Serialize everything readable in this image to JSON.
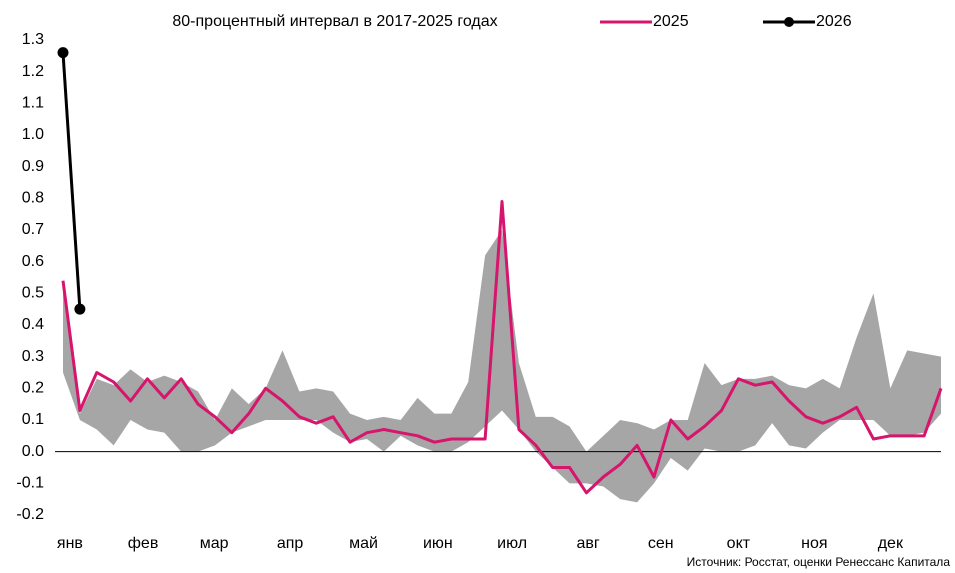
{
  "chart_data": {
    "type": "line",
    "x": [
      0,
      1,
      2,
      3,
      4,
      5,
      6,
      7,
      8,
      9,
      10,
      11,
      12,
      13,
      14,
      15,
      16,
      17,
      18,
      19,
      20,
      21,
      22,
      23,
      24,
      25,
      26,
      27,
      28,
      29,
      30,
      31,
      32,
      33,
      34,
      35,
      36,
      37,
      38,
      39,
      40,
      41,
      42,
      43,
      44,
      45,
      46,
      47,
      48,
      49,
      50,
      51,
      52
    ],
    "xlim": [
      0,
      52
    ],
    "xticks": [
      {
        "value": 0.41,
        "label": "янв"
      },
      {
        "value": 4.74,
        "label": "фев"
      },
      {
        "value": 8.95,
        "label": "мар"
      },
      {
        "value": 13.45,
        "label": "апр"
      },
      {
        "value": 17.8,
        "label": "май"
      },
      {
        "value": 22.2,
        "label": "июн"
      },
      {
        "value": 26.6,
        "label": "июл"
      },
      {
        "value": 31.1,
        "label": "авг"
      },
      {
        "value": 35.4,
        "label": "сен"
      },
      {
        "value": 40.0,
        "label": "окт"
      },
      {
        "value": 44.5,
        "label": "ноя"
      },
      {
        "value": 49.0,
        "label": "дек"
      }
    ],
    "ylim": [
      -0.2,
      1.3
    ],
    "yticks": [
      1.3,
      1.2,
      1.1,
      {
        "value": 1.0,
        "label": "1.0"
      },
      0.9,
      0.8,
      0.7,
      0.6,
      0.5,
      0.4,
      0.3,
      0.2,
      0.1,
      {
        "value": 0,
        "label": "0.0"
      },
      -0.1,
      -0.2
    ],
    "grid": false,
    "band": {
      "name": "80-процентный интервал в 2017-2025 годах",
      "color": "#a6a6a6",
      "upper": [
        0.52,
        0.12,
        0.23,
        0.21,
        0.26,
        0.22,
        0.24,
        0.22,
        0.19,
        0.1,
        0.2,
        0.15,
        0.2,
        0.32,
        0.19,
        0.2,
        0.19,
        0.12,
        0.1,
        0.11,
        0.1,
        0.17,
        0.12,
        0.12,
        0.22,
        0.62,
        0.7,
        0.28,
        0.11,
        0.11,
        0.08,
        0.0,
        0.05,
        0.1,
        0.09,
        0.07,
        0.1,
        0.1,
        0.28,
        0.21,
        0.23,
        0.23,
        0.24,
        0.21,
        0.2,
        0.23,
        0.2,
        0.36,
        0.5,
        0.2,
        0.32,
        0.31,
        0.3
      ],
      "lower": [
        0.25,
        0.1,
        0.07,
        0.02,
        0.1,
        0.07,
        0.06,
        0.0,
        0.0,
        0.02,
        0.06,
        0.08,
        0.1,
        0.1,
        0.1,
        0.1,
        0.06,
        0.03,
        0.04,
        0.0,
        0.05,
        0.02,
        0.0,
        0.0,
        0.03,
        0.08,
        0.13,
        0.07,
        0.0,
        -0.05,
        -0.1,
        -0.1,
        -0.11,
        -0.15,
        -0.16,
        -0.1,
        -0.02,
        -0.06,
        0.01,
        0.0,
        0.0,
        0.02,
        0.09,
        0.02,
        0.01,
        0.06,
        0.1,
        0.1,
        0.1,
        0.05,
        0.05,
        0.06,
        0.12
      ]
    },
    "series": [
      {
        "name": "2025",
        "color": "#d6156c",
        "marker": false,
        "values": [
          0.54,
          0.13,
          0.25,
          0.22,
          0.16,
          0.23,
          0.17,
          0.23,
          0.15,
          0.11,
          0.06,
          0.12,
          0.2,
          0.16,
          0.11,
          0.09,
          0.11,
          0.03,
          0.06,
          0.07,
          0.06,
          0.05,
          0.03,
          0.04,
          0.04,
          0.04,
          0.79,
          0.07,
          0.02,
          -0.05,
          -0.05,
          -0.13,
          -0.08,
          -0.04,
          0.02,
          -0.08,
          0.1,
          0.04,
          0.08,
          0.13,
          0.23,
          0.21,
          0.22,
          0.16,
          0.11,
          0.09,
          0.11,
          0.14,
          0.04,
          0.05,
          0.05,
          0.05,
          0.2
        ]
      },
      {
        "name": "2026",
        "color": "#000000",
        "marker": true,
        "values": [
          1.26,
          0.45,
          null,
          null,
          null,
          null,
          null,
          null,
          null,
          null,
          null,
          null,
          null,
          null,
          null,
          null,
          null,
          null,
          null,
          null,
          null,
          null,
          null,
          null,
          null,
          null,
          null,
          null,
          null,
          null,
          null,
          null,
          null,
          null,
          null,
          null,
          null,
          null,
          null,
          null,
          null,
          null,
          null,
          null,
          null,
          null,
          null,
          null,
          null,
          null,
          null,
          null,
          null
        ]
      }
    ],
    "source": "Источник: Росстат, оценки Ренессанс Капитала"
  }
}
